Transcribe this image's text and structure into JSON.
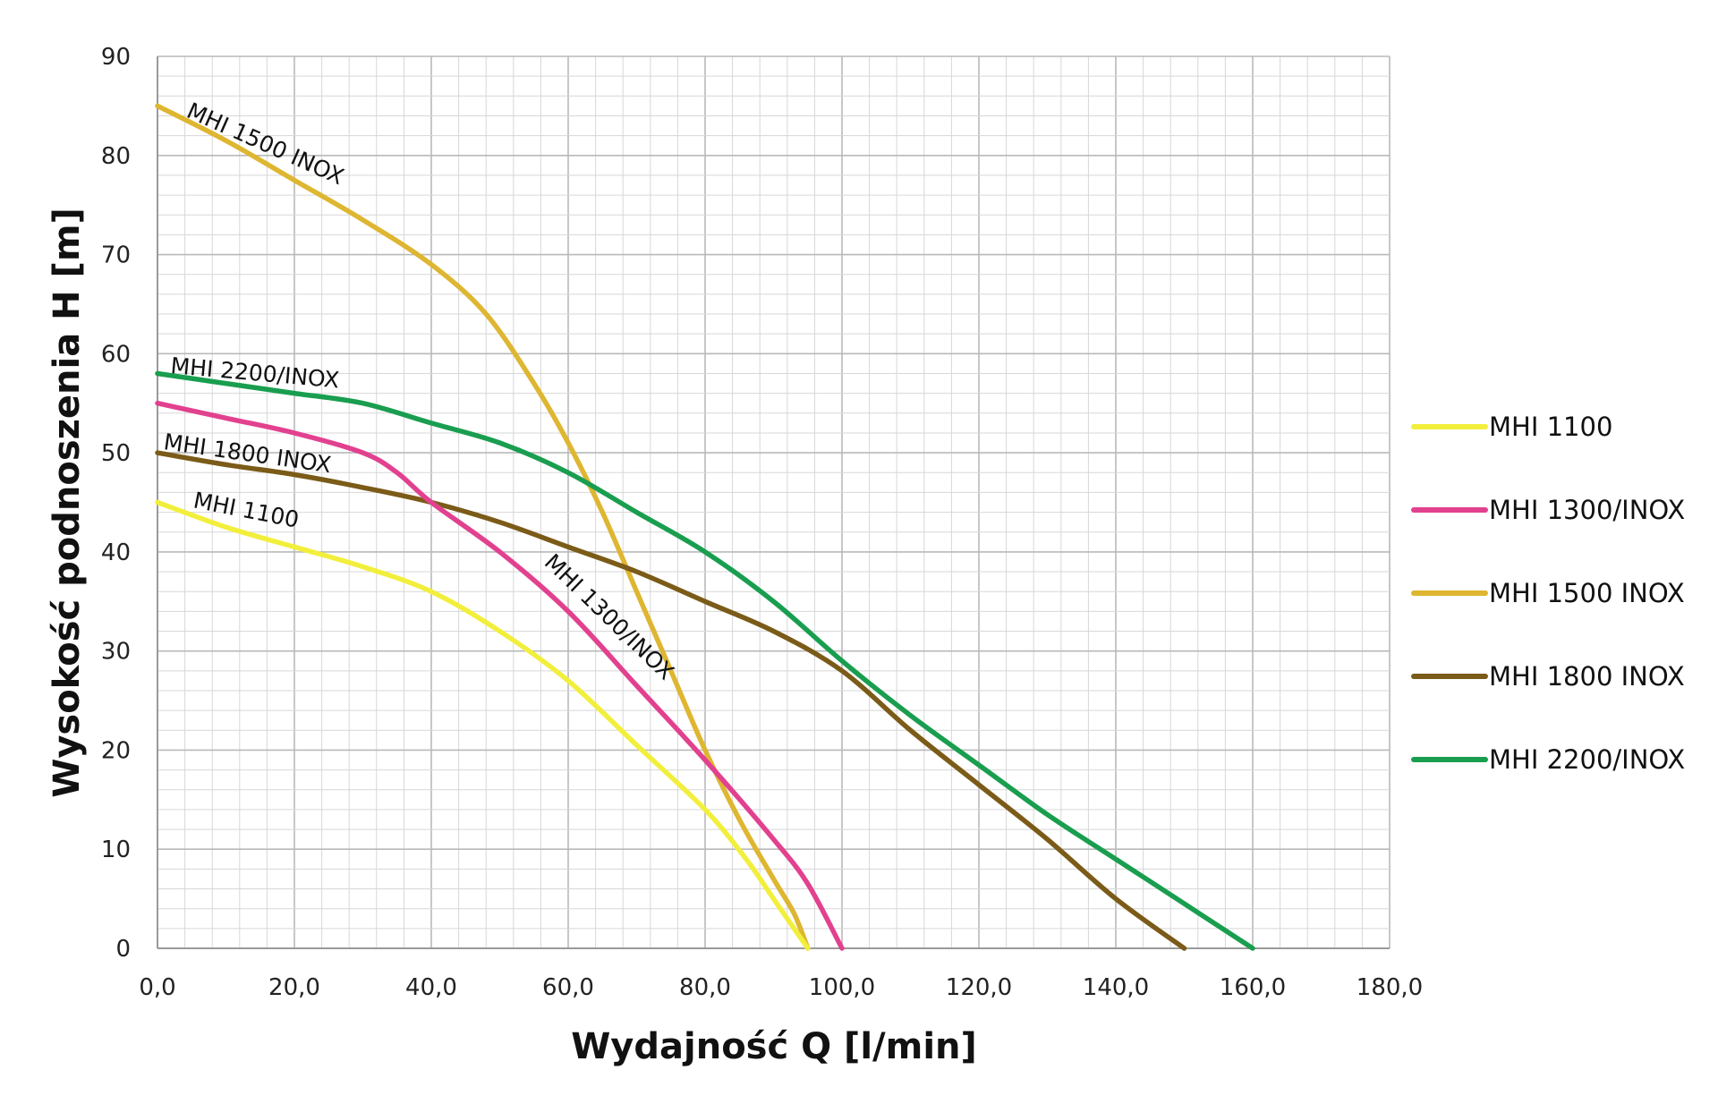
{
  "chart_data": {
    "type": "line",
    "title": "",
    "xlabel": "Wydajność Q [l/min]",
    "ylabel": "Wysokość podnoszenia H [m]",
    "xlim": [
      0,
      180
    ],
    "ylim": [
      0,
      90
    ],
    "x_ticks": [
      "0,0",
      "20,0",
      "40,0",
      "60,0",
      "80,0",
      "100,0",
      "120,0",
      "140,0",
      "160,0",
      "180,0"
    ],
    "y_ticks": [
      "0",
      "10",
      "20",
      "30",
      "40",
      "50",
      "60",
      "70",
      "80",
      "90"
    ],
    "grid": true,
    "legend_position": "right",
    "series": [
      {
        "name": "MHI 1100",
        "label": "MHI 1100",
        "color": "#f2ef3c",
        "points": [
          [
            0,
            45
          ],
          [
            10,
            42.5
          ],
          [
            20,
            40.5
          ],
          [
            30,
            38.5
          ],
          [
            40,
            36
          ],
          [
            50,
            32
          ],
          [
            60,
            27
          ],
          [
            70,
            20.5
          ],
          [
            80,
            14
          ],
          [
            86,
            9
          ],
          [
            90,
            5
          ],
          [
            95,
            0
          ]
        ]
      },
      {
        "name": "MHI 1300/INOX",
        "label": "MHI 1300/INOX",
        "color": "#e2418f",
        "points": [
          [
            0,
            55
          ],
          [
            10,
            53.5
          ],
          [
            20,
            52
          ],
          [
            30,
            50
          ],
          [
            35,
            48
          ],
          [
            40,
            45
          ],
          [
            50,
            40
          ],
          [
            60,
            34
          ],
          [
            70,
            26.5
          ],
          [
            80,
            19
          ],
          [
            90,
            11
          ],
          [
            95,
            6.5
          ],
          [
            100,
            0
          ]
        ]
      },
      {
        "name": "MHI 1500 INOX",
        "label": "MHI 1500 INOX",
        "color": "#deb631",
        "points": [
          [
            0,
            85
          ],
          [
            10,
            81.5
          ],
          [
            20,
            77.5
          ],
          [
            30,
            73.5
          ],
          [
            40,
            69
          ],
          [
            48,
            64
          ],
          [
            55,
            57
          ],
          [
            60,
            51
          ],
          [
            65,
            44
          ],
          [
            70,
            36
          ],
          [
            75,
            28
          ],
          [
            80,
            20
          ],
          [
            85,
            13
          ],
          [
            90,
            7
          ],
          [
            93,
            3.5
          ],
          [
            95,
            0
          ]
        ]
      },
      {
        "name": "MHI 1800 INOX",
        "label": "MHI 1800 INOX",
        "color": "#7b5b18",
        "points": [
          [
            0,
            50
          ],
          [
            10,
            48.8
          ],
          [
            20,
            47.8
          ],
          [
            30,
            46.5
          ],
          [
            40,
            45
          ],
          [
            50,
            43
          ],
          [
            60,
            40.5
          ],
          [
            70,
            38
          ],
          [
            80,
            35
          ],
          [
            90,
            32
          ],
          [
            100,
            28
          ],
          [
            110,
            22
          ],
          [
            120,
            16.5
          ],
          [
            130,
            11
          ],
          [
            140,
            5
          ],
          [
            150,
            0
          ]
        ]
      },
      {
        "name": "MHI 2200/INOX",
        "label": "MHI 2200/INOX",
        "color": "#199e4f",
        "points": [
          [
            0,
            58
          ],
          [
            10,
            57
          ],
          [
            20,
            56
          ],
          [
            30,
            55
          ],
          [
            40,
            53
          ],
          [
            50,
            51
          ],
          [
            60,
            48
          ],
          [
            70,
            44
          ],
          [
            80,
            40
          ],
          [
            90,
            35
          ],
          [
            100,
            29
          ],
          [
            110,
            23.5
          ],
          [
            120,
            18.5
          ],
          [
            130,
            13.5
          ],
          [
            140,
            9
          ],
          [
            150,
            4.5
          ],
          [
            160,
            0
          ]
        ]
      }
    ]
  }
}
